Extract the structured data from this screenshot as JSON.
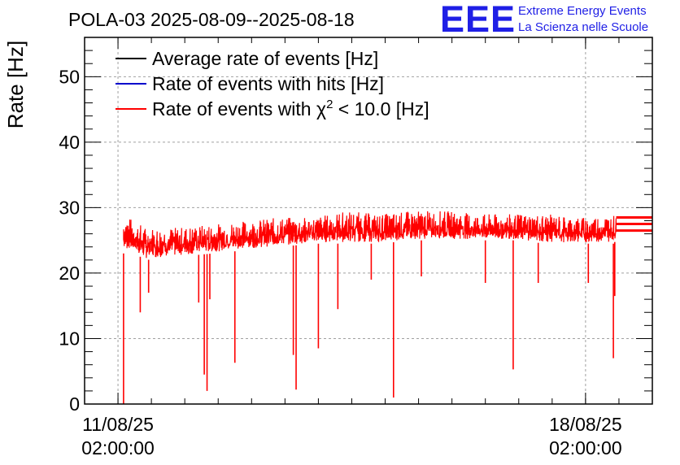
{
  "chart_data": {
    "type": "line",
    "title": "POLA-03 2025-08-09--2025-08-18",
    "ylabel": "Rate [Hz]",
    "xlabel": "",
    "ylim": [
      0,
      56
    ],
    "xlim": [
      "2025-08-10T14:00:00",
      "2025-08-19T02:00:00"
    ],
    "yticks": [
      0,
      10,
      20,
      30,
      40,
      50
    ],
    "xticks": [
      {
        "value": "2025-08-11T02:00:00",
        "line1": "11/08/25",
        "line2": "02:00:00"
      },
      {
        "value": "2025-08-18T02:00:00",
        "line1": "18/08/25",
        "line2": "02:00:00"
      }
    ],
    "grid": true,
    "legend_position": "top-left",
    "brand": {
      "logo": "EEE",
      "line1": "Extreme Energy Events",
      "line2": "La Scienza nelle Scuole"
    },
    "series": [
      {
        "name": "Average rate of events [Hz]",
        "color": "#000000",
        "values": []
      },
      {
        "name": "Rate of events with hits [Hz]",
        "color": "#0000cc",
        "values": []
      },
      {
        "name": "Rate of events with χ² < 10.0 [Hz]",
        "name_prefix": "Rate of events with χ",
        "name_sup": "2",
        "name_suffix": " < 10.0 [Hz]",
        "color": "#ff0000",
        "envelope": {
          "x": [
            "2025-08-11T04:00:00",
            "2025-08-11T06:00:00",
            "2025-08-11T12:00:00",
            "2025-08-12T00:00:00",
            "2025-08-12T12:00:00",
            "2025-08-13T00:00:00",
            "2025-08-13T12:00:00",
            "2025-08-14T00:00:00",
            "2025-08-14T12:00:00",
            "2025-08-15T00:00:00",
            "2025-08-15T12:00:00",
            "2025-08-16T00:00:00",
            "2025-08-16T12:00:00",
            "2025-08-17T00:00:00",
            "2025-08-17T12:00:00",
            "2025-08-18T00:00:00",
            "2025-08-18T12:00:00",
            "2025-08-18T13:00:00"
          ],
          "upper": [
            29.5,
            28.5,
            27.0,
            27.0,
            27.5,
            28.0,
            28.5,
            28.5,
            29.5,
            29.0,
            29.5,
            29.5,
            29.0,
            29.0,
            29.0,
            28.5,
            29.0,
            28.5
          ],
          "lower": [
            23.0,
            23.5,
            22.0,
            22.5,
            23.0,
            23.5,
            24.0,
            24.5,
            24.5,
            24.5,
            25.0,
            25.0,
            25.0,
            25.0,
            24.5,
            24.5,
            24.5,
            25.0
          ]
        },
        "dips": [
          {
            "x": "2025-08-11T04:00:00",
            "y": 0.0
          },
          {
            "x": "2025-08-11T10:00:00",
            "y": 14.0
          },
          {
            "x": "2025-08-11T13:00:00",
            "y": 17.0
          },
          {
            "x": "2025-08-12T07:00:00",
            "y": 15.5
          },
          {
            "x": "2025-08-12T09:00:00",
            "y": 4.5
          },
          {
            "x": "2025-08-12T10:00:00",
            "y": 2.0
          },
          {
            "x": "2025-08-12T11:00:00",
            "y": 16.0
          },
          {
            "x": "2025-08-12T20:00:00",
            "y": 6.3
          },
          {
            "x": "2025-08-13T17:00:00",
            "y": 7.5
          },
          {
            "x": "2025-08-13T18:00:00",
            "y": 2.2
          },
          {
            "x": "2025-08-14T02:00:00",
            "y": 8.5
          },
          {
            "x": "2025-08-14T09:00:00",
            "y": 14.5
          },
          {
            "x": "2025-08-14T21:00:00",
            "y": 19.0
          },
          {
            "x": "2025-08-15T05:00:00",
            "y": 1.0
          },
          {
            "x": "2025-08-15T15:00:00",
            "y": 19.5
          },
          {
            "x": "2025-08-16T14:00:00",
            "y": 18.5
          },
          {
            "x": "2025-08-17T00:00:00",
            "y": 5.3
          },
          {
            "x": "2025-08-17T09:00:00",
            "y": 18.5
          },
          {
            "x": "2025-08-18T03:00:00",
            "y": 18.5
          },
          {
            "x": "2025-08-18T12:00:00",
            "y": 7.0
          },
          {
            "x": "2025-08-18T12:30:00",
            "y": 16.5
          }
        ],
        "tail": {
          "x_start": "2025-08-18T13:00:00",
          "x_end": "2025-08-19T02:00:00",
          "levels": [
            26.5,
            27.5,
            28.5
          ]
        }
      }
    ]
  }
}
